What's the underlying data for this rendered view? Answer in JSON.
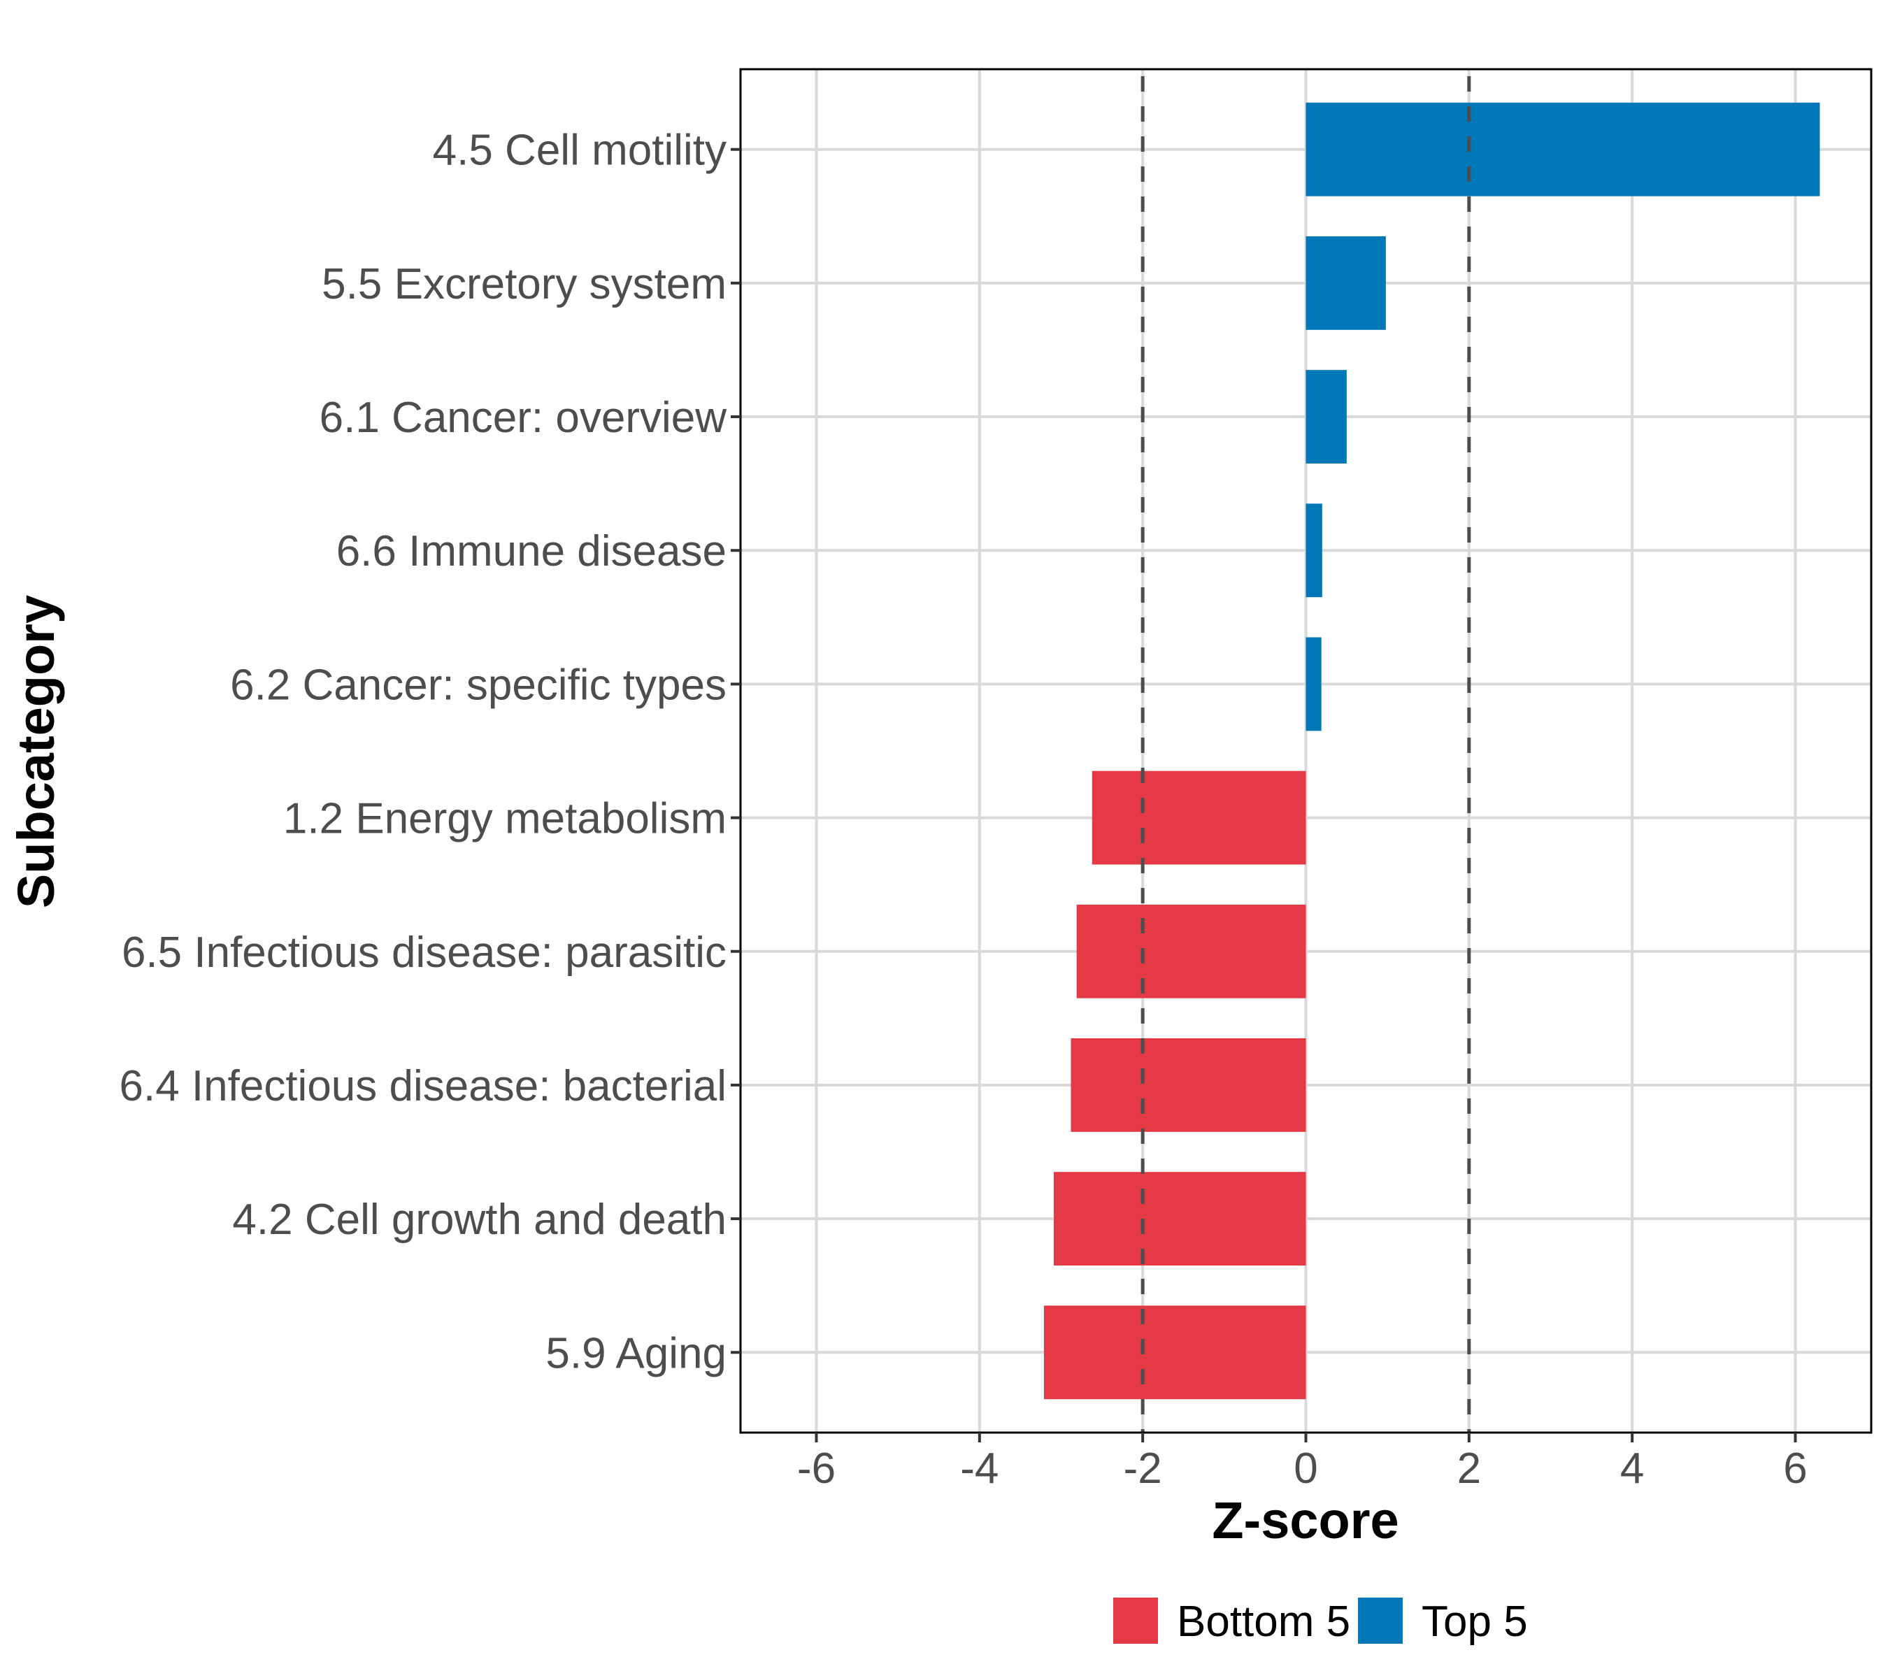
{
  "chart_data": {
    "type": "bar",
    "orientation": "horizontal",
    "title": "",
    "xlabel": "Z-score",
    "ylabel": "Subcategory",
    "xlim": [
      -6.93,
      6.93
    ],
    "x_ticks": [
      -6,
      -4,
      -2,
      0,
      2,
      4,
      6
    ],
    "x_tick_labels": [
      "-6",
      "-4",
      "-2",
      "0",
      "2",
      "4",
      "6"
    ],
    "grid": true,
    "reference_lines": [
      {
        "x": -2,
        "style": "dashed"
      },
      {
        "x": 2,
        "style": "dashed"
      }
    ],
    "categories": [
      "4.5 Cell motility",
      "5.5 Excretory system",
      "6.1 Cancer: overview",
      "6.6 Immune disease",
      "6.2 Cancer: specific types",
      "1.2 Energy metabolism",
      "6.5 Infectious disease: parasitic",
      "6.4 Infectious disease: bacterial",
      "4.2 Cell growth and death",
      "5.9 Aging"
    ],
    "values": [
      6.3,
      0.98,
      0.5,
      0.2,
      0.19,
      -2.62,
      -2.81,
      -2.88,
      -3.09,
      -3.21
    ],
    "groups": [
      "Top 5",
      "Top 5",
      "Top 5",
      "Top 5",
      "Top 5",
      "Bottom 5",
      "Bottom 5",
      "Bottom 5",
      "Bottom 5",
      "Bottom 5"
    ],
    "legend": {
      "placement": "bottom",
      "entries": [
        {
          "label": "Bottom 5",
          "color": "#e63946"
        },
        {
          "label": "Top 5",
          "color": "#0077b6"
        }
      ]
    },
    "colors": {
      "Bottom 5": "#e63946",
      "Top 5": "#0077b6"
    }
  }
}
